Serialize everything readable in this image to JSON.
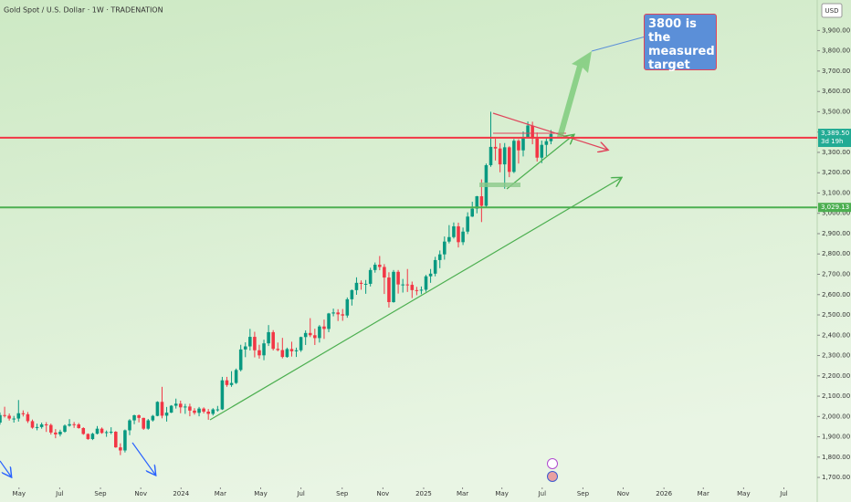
{
  "chart_data": {
    "type": "candlestick",
    "title": "Gold Spot / U.S. Dollar · 1W · TRADENATION",
    "currency": "USD",
    "up_color": "#089981",
    "down_color": "#f23645",
    "x": [
      0,
      1,
      2,
      3,
      4,
      5,
      6,
      7,
      8,
      9,
      10,
      11,
      12,
      13,
      14,
      15,
      16,
      17,
      18,
      19,
      20,
      21,
      22,
      23,
      24,
      25,
      26,
      27,
      28,
      29,
      30,
      31,
      32,
      33,
      34,
      35,
      36,
      37,
      38,
      39,
      40,
      41,
      42,
      43,
      44,
      45,
      46,
      47,
      48,
      49,
      50,
      51,
      52,
      53,
      54,
      55,
      56,
      57,
      58,
      59,
      60,
      61,
      62,
      63,
      64,
      65,
      66,
      67,
      68,
      69,
      70,
      71,
      72,
      73,
      74,
      75,
      76,
      77,
      78,
      79,
      80,
      81,
      82,
      83,
      84,
      85,
      86,
      87,
      88,
      89,
      90,
      91,
      92,
      93,
      94,
      95,
      96,
      97,
      98,
      99,
      100,
      101,
      102,
      103,
      104,
      105,
      106,
      107,
      108,
      109,
      110,
      111,
      112,
      113,
      114,
      115,
      116,
      117,
      118,
      119
    ],
    "open": [
      1970,
      2007,
      2004,
      1990,
      1990,
      2016,
      2011,
      1977,
      1945,
      1948,
      1961,
      1958,
      1921,
      1912,
      1925,
      1955,
      1962,
      1961,
      1943,
      1914,
      1889,
      1915,
      1940,
      1919,
      1923,
      1925,
      1848,
      1833,
      1932,
      1981,
      2006,
      1993,
      1940,
      1981,
      2003,
      2072,
      2004,
      2019,
      2053,
      2063,
      2045,
      2049,
      2029,
      2018,
      2039,
      2024,
      2013,
      2035,
      2035,
      2178,
      2155,
      2165,
      2229,
      2330,
      2345,
      2392,
      2326,
      2301,
      2360,
      2415,
      2333,
      2327,
      2293,
      2332,
      2321,
      2326,
      2391,
      2411,
      2400,
      2386,
      2443,
      2431,
      2507,
      2512,
      2503,
      2497,
      2577,
      2622,
      2658,
      2653,
      2653,
      2721,
      2747,
      2736,
      2684,
      2563,
      2712,
      2650,
      2650,
      2648,
      2622,
      2620,
      2624,
      2690,
      2703,
      2770,
      2798,
      2861,
      2883,
      2936,
      2858,
      2910,
      2984,
      3023,
      3084,
      3037,
      3237,
      3327,
      3319,
      3241,
      3325,
      3204,
      3357,
      3310,
      3375,
      3432,
      3368,
      3274,
      3337,
      3355
    ],
    "high": [
      2020,
      2048,
      2015,
      2003,
      2081,
      2030,
      2022,
      1985,
      1965,
      1970,
      1972,
      1965,
      1938,
      1935,
      1961,
      1987,
      1973,
      1968,
      1947,
      1917,
      1920,
      1953,
      1946,
      1931,
      1947,
      1928,
      1868,
      1936,
      1987,
      2009,
      2010,
      1994,
      1988,
      2008,
      2075,
      2146,
      2047,
      2056,
      2088,
      2078,
      2062,
      2063,
      2041,
      2047,
      2045,
      2037,
      2041,
      2052,
      2195,
      2195,
      2223,
      2236,
      2353,
      2365,
      2431,
      2417,
      2353,
      2378,
      2450,
      2425,
      2364,
      2387,
      2339,
      2368,
      2339,
      2393,
      2424,
      2484,
      2432,
      2450,
      2477,
      2510,
      2531,
      2528,
      2529,
      2586,
      2625,
      2685,
      2670,
      2672,
      2732,
      2758,
      2790,
      2750,
      2710,
      2721,
      2721,
      2677,
      2726,
      2664,
      2638,
      2640,
      2697,
      2726,
      2786,
      2817,
      2886,
      2942,
      2955,
      2954,
      2930,
      3005,
      3057,
      3086,
      3167,
      3245,
      3500,
      3367,
      3345,
      3346,
      3330,
      3366,
      3365,
      3403,
      3452,
      3451,
      3398,
      3358,
      3375,
      3410
    ],
    "low": [
      1960,
      1995,
      1980,
      1970,
      1975,
      2000,
      1968,
      1940,
      1932,
      1940,
      1924,
      1911,
      1893,
      1902,
      1920,
      1950,
      1944,
      1940,
      1910,
      1885,
      1884,
      1912,
      1915,
      1900,
      1913,
      1846,
      1810,
      1823,
      1908,
      1962,
      1971,
      1934,
      1935,
      1975,
      2001,
      1991,
      1975,
      2017,
      2039,
      2016,
      2013,
      2001,
      2009,
      2001,
      2015,
      1984,
      2005,
      2024,
      2032,
      2146,
      2146,
      2160,
      2222,
      2292,
      2325,
      2291,
      2285,
      2277,
      2347,
      2325,
      2321,
      2286,
      2289,
      2295,
      2293,
      2318,
      2352,
      2391,
      2352,
      2364,
      2382,
      2415,
      2493,
      2470,
      2471,
      2486,
      2546,
      2599,
      2624,
      2604,
      2640,
      2708,
      2720,
      2603,
      2536,
      2560,
      2605,
      2610,
      2613,
      2583,
      2597,
      2602,
      2614,
      2658,
      2690,
      2730,
      2772,
      2852,
      2876,
      2832,
      2844,
      2898,
      2982,
      3000,
      2957,
      3030,
      3229,
      3260,
      3202,
      3121,
      3178,
      3198,
      3245,
      3280,
      3371,
      3340,
      3255,
      3247,
      3282,
      3340
    ],
    "close": [
      2007,
      2004,
      1990,
      1990,
      2016,
      2011,
      1977,
      1945,
      1948,
      1961,
      1958,
      1921,
      1912,
      1925,
      1955,
      1962,
      1961,
      1943,
      1914,
      1889,
      1915,
      1940,
      1919,
      1923,
      1925,
      1848,
      1833,
      1932,
      1981,
      2006,
      1993,
      1940,
      1981,
      2003,
      2072,
      2004,
      2019,
      2053,
      2063,
      2045,
      2049,
      2029,
      2018,
      2039,
      2024,
      2013,
      2035,
      2035,
      2178,
      2155,
      2165,
      2229,
      2330,
      2345,
      2392,
      2326,
      2301,
      2360,
      2415,
      2333,
      2327,
      2293,
      2332,
      2321,
      2326,
      2391,
      2411,
      2400,
      2386,
      2443,
      2431,
      2507,
      2512,
      2503,
      2497,
      2577,
      2622,
      2658,
      2653,
      2653,
      2721,
      2747,
      2736,
      2684,
      2563,
      2712,
      2650,
      2650,
      2648,
      2622,
      2620,
      2624,
      2690,
      2703,
      2770,
      2798,
      2861,
      2883,
      2936,
      2858,
      2910,
      2984,
      3023,
      3084,
      3037,
      3237,
      3327,
      3319,
      3241,
      3325,
      3204,
      3357,
      3310,
      3375,
      3432,
      3368,
      3274,
      3337,
      3355,
      3390
    ],
    "xlim": [
      0,
      176.5
    ],
    "xticks": [
      {
        "value": 4.1,
        "label": "May"
      },
      {
        "value": 12.9,
        "label": "Jul"
      },
      {
        "value": 21.7,
        "label": "Sep"
      },
      {
        "value": 30.4,
        "label": "Nov"
      },
      {
        "value": 39.1,
        "label": "2024"
      },
      {
        "value": 47.6,
        "label": "Mar"
      },
      {
        "value": 56.3,
        "label": "May"
      },
      {
        "value": 65,
        "label": "Jul"
      },
      {
        "value": 73.9,
        "label": "Sep"
      },
      {
        "value": 82.7,
        "label": "Nov"
      },
      {
        "value": 91.5,
        "label": "2025"
      },
      {
        "value": 99.9,
        "label": "Mar"
      },
      {
        "value": 108.4,
        "label": "May"
      },
      {
        "value": 117.1,
        "label": "Jul"
      },
      {
        "value": 125.9,
        "label": "Sep"
      },
      {
        "value": 134.6,
        "label": "Nov"
      },
      {
        "value": 143.4,
        "label": "2026"
      },
      {
        "value": 151.9,
        "label": "Mar"
      },
      {
        "value": 160.6,
        "label": "May"
      },
      {
        "value": 169.3,
        "label": "Jul"
      }
    ],
    "ylim": [
      1660,
      4050
    ],
    "yticks": [
      {
        "value": 1700,
        "label": "1,700.00"
      },
      {
        "value": 1800,
        "label": "1,800.00"
      },
      {
        "value": 1900,
        "label": "1,900.00"
      },
      {
        "value": 2000,
        "label": "2,000.00"
      },
      {
        "value": 2100,
        "label": "2,100.00"
      },
      {
        "value": 2200,
        "label": "2,200.00"
      },
      {
        "value": 2300,
        "label": "2,300.00"
      },
      {
        "value": 2400,
        "label": "2,400.00"
      },
      {
        "value": 2500,
        "label": "2,500.00"
      },
      {
        "value": 2600,
        "label": "2,600.00"
      },
      {
        "value": 2700,
        "label": "2,700.00"
      },
      {
        "value": 2800,
        "label": "2,800.00"
      },
      {
        "value": 2900,
        "label": "2,900.00"
      },
      {
        "value": 3000,
        "label": "3,000.00"
      },
      {
        "value": 3100,
        "label": "3,100.00"
      },
      {
        "value": 3200,
        "label": "3,200.00"
      },
      {
        "value": 3300,
        "label": "3,300.00"
      },
      {
        "value": 3400,
        "label": "3,400.00"
      },
      {
        "value": 3500,
        "label": "3,500.00"
      },
      {
        "value": 3600,
        "label": "3,600.00"
      },
      {
        "value": 3700,
        "label": "3,700.00"
      },
      {
        "value": 3800,
        "label": "3,800.00"
      },
      {
        "value": 3900,
        "label": "3,900.00"
      }
    ],
    "levels": [
      {
        "value": 3372.21,
        "label": "3,372.21",
        "color": "#f23645"
      },
      {
        "value": 3029.13,
        "label": "3,029.13",
        "color": "#4caf50"
      }
    ],
    "last_price": {
      "value": 3389.5,
      "label": "3,389.50",
      "countdown": "3d 19h",
      "color": "#22ab94"
    },
    "annotation": "3800 is the measured target"
  }
}
